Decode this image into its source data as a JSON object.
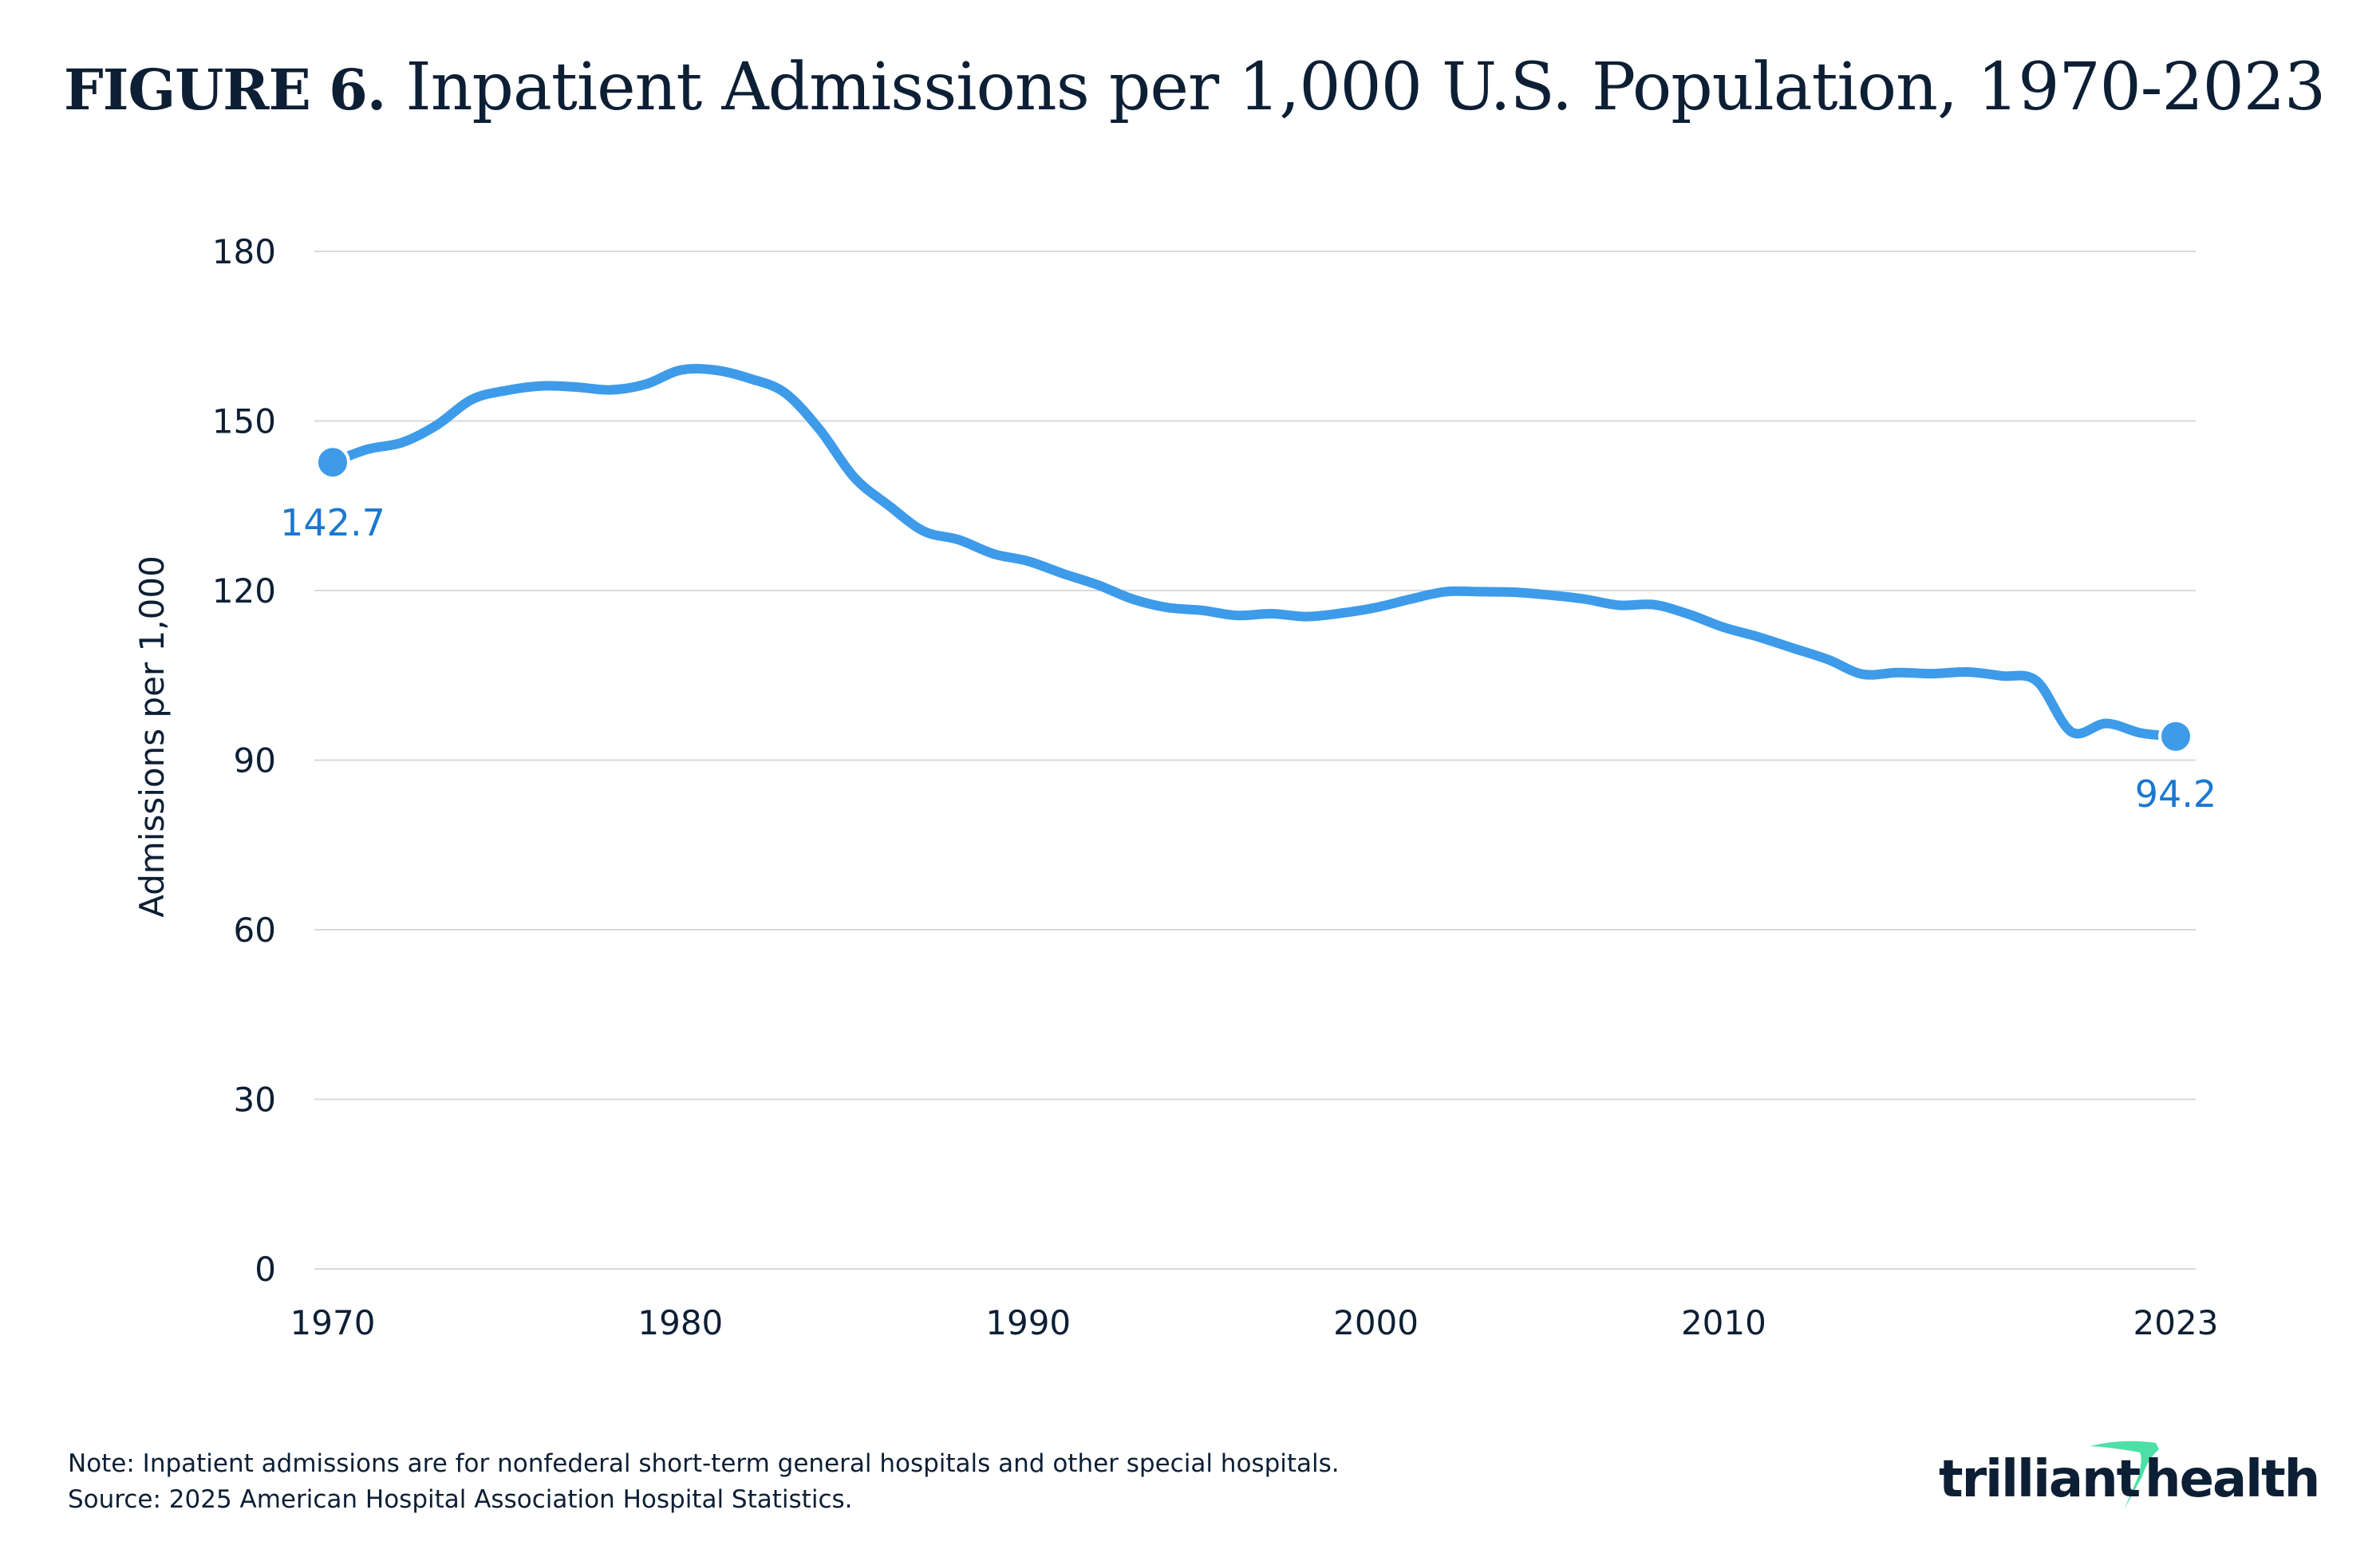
{
  "title": {
    "figure_label": "FIGURE 6.",
    "text": "Inpatient Admissions per 1,000 U.S. Population, 1970-2023"
  },
  "note": "Note: Inpatient admissions are for nonfederal short-term general hospitals and other special hospitals.",
  "source": "Source: 2025 American Hospital Association Hospital Statistics.",
  "logo": {
    "text": "trilliant health",
    "brand_dark": "#0d1f35",
    "brand_accent": "#4de0a6"
  },
  "colors": {
    "line": "#3d9be9",
    "label": "#1a78d2",
    "grid": "#d9d9d9"
  },
  "chart_data": {
    "type": "line",
    "title": "Inpatient Admissions per 1,000 U.S. Population, 1970-2023",
    "xlabel": "",
    "ylabel": "Admissions per 1,000",
    "xlim": [
      1970,
      2023
    ],
    "ylim": [
      0,
      180
    ],
    "yticks": [
      "0",
      "30",
      "60",
      "90",
      "120",
      "150",
      "180"
    ],
    "xticks": [
      "1970",
      "1980",
      "1990",
      "2000",
      "2010",
      "2023"
    ],
    "grid": true,
    "x": [
      1970,
      1971,
      1972,
      1973,
      1974,
      1975,
      1976,
      1977,
      1978,
      1979,
      1980,
      1981,
      1982,
      1983,
      1984,
      1985,
      1986,
      1987,
      1988,
      1989,
      1990,
      1991,
      1992,
      1993,
      1994,
      1995,
      1996,
      1997,
      1998,
      1999,
      2000,
      2001,
      2002,
      2003,
      2004,
      2005,
      2006,
      2007,
      2008,
      2009,
      2010,
      2011,
      2012,
      2013,
      2014,
      2015,
      2016,
      2017,
      2018,
      2019,
      2020,
      2021,
      2022,
      2023
    ],
    "values": [
      142.7,
      145,
      146.2,
      149.3,
      153.8,
      155.4,
      156.2,
      156,
      155.5,
      156.5,
      159,
      159,
      157.5,
      155,
      148.5,
      140,
      135,
      130.5,
      129,
      126.5,
      125.2,
      123,
      121,
      118.5,
      117,
      116.5,
      115.6,
      115.9,
      115.4,
      116,
      117,
      118.5,
      119.8,
      119.8,
      119.7,
      119.2,
      118.5,
      117.4,
      117.5,
      115.8,
      113.5,
      111.8,
      109.8,
      107.8,
      105.2,
      105.5,
      105.3,
      105.6,
      104.9,
      104,
      95,
      96.5,
      94.8,
      94.2
    ],
    "annotations": [
      {
        "x": 1970,
        "label": "142.7"
      },
      {
        "x": 2023,
        "label": "94.2"
      }
    ]
  }
}
